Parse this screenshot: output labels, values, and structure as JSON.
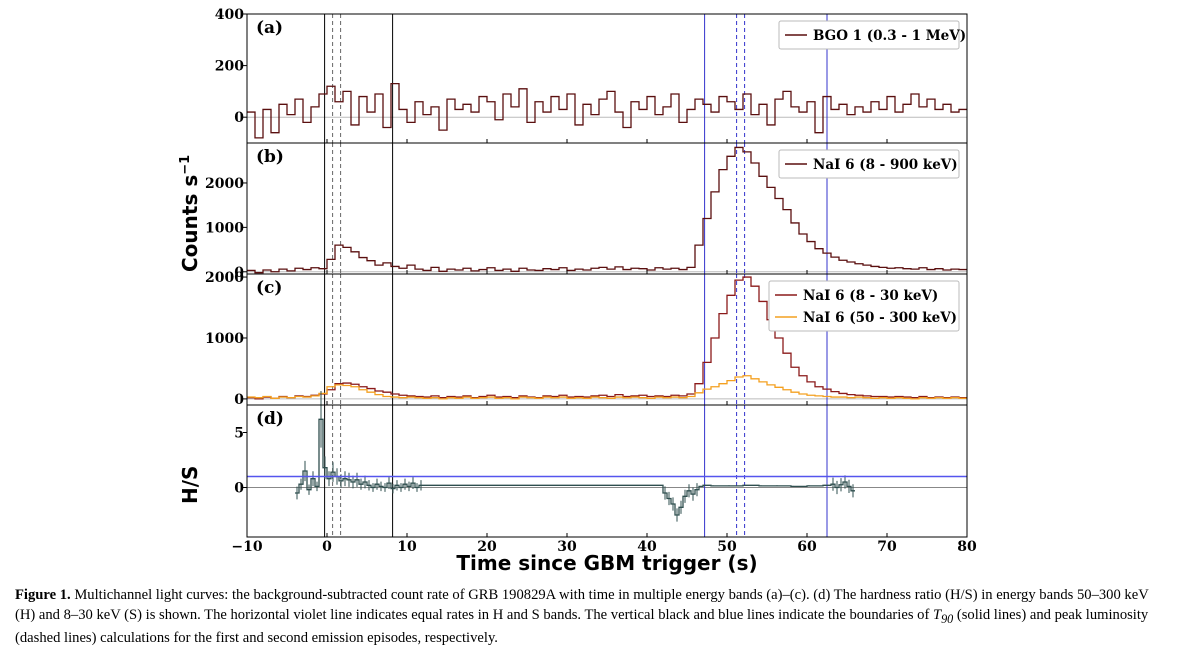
{
  "figure": {
    "x_axis_label": "Time since GBM trigger (s)",
    "y_axis_label_counts": "Counts s",
    "y_axis_label_counts_exp": "−1",
    "y_axis_label_hs": "H/S",
    "x_ticks": [
      -10,
      0,
      10,
      20,
      30,
      40,
      50,
      60,
      70,
      80
    ]
  },
  "caption": {
    "label": "Figure 1.",
    "part1": " Multichannel light curves: the background-subtracted count rate of GRB 190829A with time in multiple energy bands (a)–(c). (d) The hardness ratio (H/S) in energy bands 50–300 keV (H) and 8–30 keV (S) is shown. The horizontal violet line indicates equal rates in H and S bands. The vertical black and blue lines indicate the boundaries of ",
    "t90_symbol": "T",
    "t90_sub": "90",
    "part2": " (solid lines) and peak luminosity (dashed lines) calculations for the first and second emission episodes, respectively."
  },
  "chart_data": [
    {
      "panel": "(a)",
      "type": "line",
      "step": true,
      "xlim": [
        -10,
        80
      ],
      "ylim": [
        -100,
        400
      ],
      "y_ticks": [
        0,
        200,
        400
      ],
      "legend_position": "top-right",
      "series": [
        {
          "name": "BGO 1 (0.3 - 1 MeV)",
          "color": "#5a0f0f",
          "x": [
            -10,
            -9,
            -8,
            -7,
            -6,
            -5,
            -4,
            -3,
            -2,
            -1,
            0,
            1,
            2,
            3,
            4,
            5,
            6,
            7,
            8,
            9,
            10,
            11,
            12,
            13,
            14,
            15,
            16,
            17,
            18,
            19,
            20,
            21,
            22,
            23,
            24,
            25,
            26,
            27,
            28,
            29,
            30,
            31,
            32,
            33,
            34,
            35,
            36,
            37,
            38,
            39,
            40,
            41,
            42,
            43,
            44,
            45,
            46,
            47,
            48,
            49,
            50,
            51,
            52,
            53,
            54,
            55,
            56,
            57,
            58,
            59,
            60,
            61,
            62,
            63,
            64,
            65,
            66,
            67,
            68,
            69,
            70,
            71,
            72,
            73,
            74,
            75,
            76,
            77,
            78,
            79
          ],
          "y": [
            20,
            -80,
            30,
            -60,
            50,
            10,
            70,
            -20,
            40,
            90,
            120,
            60,
            100,
            -30,
            80,
            20,
            90,
            -40,
            130,
            30,
            -20,
            60,
            10,
            40,
            -50,
            70,
            30,
            50,
            20,
            80,
            60,
            -10,
            90,
            40,
            110,
            -20,
            60,
            20,
            80,
            30,
            90,
            -30,
            50,
            10,
            70,
            100,
            20,
            -40,
            60,
            30,
            80,
            10,
            40,
            90,
            -20,
            30,
            70,
            50,
            20,
            80,
            60,
            30,
            90,
            10,
            50,
            -30,
            70,
            100,
            40,
            20,
            60,
            -60,
            80,
            30,
            50,
            10,
            40,
            20,
            60,
            30,
            80,
            20,
            50,
            90,
            40,
            70,
            30,
            50,
            20,
            30
          ]
        }
      ]
    },
    {
      "panel": "(b)",
      "type": "line",
      "step": true,
      "xlim": [
        -10,
        80
      ],
      "ylim": [
        -50,
        2900
      ],
      "y_ticks": [
        0,
        1000,
        2000
      ],
      "legend_position": "top-right",
      "series": [
        {
          "name": "NaI 6 (8 - 900 keV)",
          "color": "#5a0f0f",
          "x": [
            -10,
            -9,
            -8,
            -7,
            -6,
            -5,
            -4,
            -3,
            -2,
            -1,
            0,
            1,
            2,
            3,
            4,
            5,
            6,
            7,
            8,
            9,
            10,
            11,
            12,
            13,
            14,
            15,
            16,
            17,
            18,
            19,
            20,
            21,
            22,
            23,
            24,
            25,
            26,
            27,
            28,
            29,
            30,
            31,
            32,
            33,
            34,
            35,
            36,
            37,
            38,
            39,
            40,
            41,
            42,
            43,
            44,
            45,
            46,
            47,
            48,
            49,
            50,
            51,
            52,
            53,
            54,
            55,
            56,
            57,
            58,
            59,
            60,
            61,
            62,
            63,
            64,
            65,
            66,
            67,
            68,
            69,
            70,
            71,
            72,
            73,
            74,
            75,
            76,
            77,
            78,
            79
          ],
          "y": [
            30,
            -20,
            40,
            0,
            60,
            20,
            80,
            50,
            90,
            70,
            280,
            600,
            550,
            450,
            320,
            250,
            150,
            200,
            120,
            80,
            150,
            60,
            30,
            100,
            10,
            60,
            40,
            80,
            20,
            50,
            90,
            30,
            60,
            10,
            80,
            40,
            30,
            70,
            50,
            90,
            30,
            60,
            40,
            80,
            100,
            60,
            110,
            50,
            80,
            70,
            40,
            90,
            60,
            80,
            50,
            100,
            600,
            1200,
            1800,
            2300,
            2600,
            2800,
            2700,
            2450,
            2150,
            1900,
            1650,
            1400,
            1100,
            850,
            680,
            520,
            420,
            330,
            260,
            220,
            180,
            150,
            120,
            100,
            80,
            90,
            70,
            60,
            90,
            50,
            70,
            40,
            60,
            50
          ]
        }
      ]
    },
    {
      "panel": "(c)",
      "type": "line",
      "step": true,
      "xlim": [
        -10,
        80
      ],
      "ylim": [
        -100,
        2050
      ],
      "y_ticks": [
        0,
        1000,
        2000
      ],
      "legend_position": "top-right",
      "series": [
        {
          "name": "NaI 6 (8 - 30 keV)",
          "color": "#8b1a1a",
          "x": [
            -10,
            -9,
            -8,
            -7,
            -6,
            -5,
            -4,
            -3,
            -2,
            -1,
            0,
            1,
            2,
            3,
            4,
            5,
            6,
            7,
            8,
            9,
            10,
            11,
            12,
            13,
            14,
            15,
            16,
            17,
            18,
            19,
            20,
            21,
            22,
            23,
            24,
            25,
            26,
            27,
            28,
            29,
            30,
            31,
            32,
            33,
            34,
            35,
            36,
            37,
            38,
            39,
            40,
            41,
            42,
            43,
            44,
            45,
            46,
            47,
            48,
            49,
            50,
            51,
            52,
            53,
            54,
            55,
            56,
            57,
            58,
            59,
            60,
            61,
            62,
            63,
            64,
            65,
            66,
            67,
            68,
            69,
            70,
            71,
            72,
            73,
            74,
            75,
            76,
            77,
            78,
            79
          ],
          "y": [
            20,
            0,
            30,
            10,
            40,
            20,
            50,
            40,
            60,
            80,
            150,
            250,
            260,
            240,
            200,
            170,
            130,
            110,
            80,
            60,
            50,
            40,
            30,
            50,
            20,
            40,
            30,
            50,
            20,
            40,
            60,
            30,
            40,
            20,
            50,
            30,
            20,
            50,
            40,
            60,
            30,
            40,
            30,
            50,
            60,
            40,
            70,
            40,
            50,
            60,
            40,
            50,
            40,
            60,
            50,
            80,
            250,
            600,
            1000,
            1400,
            1700,
            1950,
            2000,
            1850,
            1600,
            1300,
            1000,
            750,
            520,
            380,
            280,
            200,
            160,
            120,
            90,
            70,
            60,
            50,
            40,
            40,
            30,
            40,
            30,
            20,
            40,
            20,
            30,
            20,
            30,
            20
          ]
        },
        {
          "name": "NaI 6 (50 - 300 keV)",
          "color": "#f4a020",
          "x": [
            -10,
            -9,
            -8,
            -7,
            -6,
            -5,
            -4,
            -3,
            -2,
            -1,
            0,
            1,
            2,
            3,
            4,
            5,
            6,
            7,
            8,
            9,
            10,
            11,
            12,
            13,
            14,
            15,
            16,
            17,
            18,
            19,
            20,
            21,
            22,
            23,
            24,
            25,
            26,
            27,
            28,
            29,
            30,
            31,
            32,
            33,
            34,
            35,
            36,
            37,
            38,
            39,
            40,
            41,
            42,
            43,
            44,
            45,
            46,
            47,
            48,
            49,
            50,
            51,
            52,
            53,
            54,
            55,
            56,
            57,
            58,
            59,
            60,
            61,
            62,
            63,
            64,
            65,
            66,
            67,
            68,
            69,
            70,
            71,
            72,
            73,
            74,
            75,
            76,
            77,
            78,
            79
          ],
          "y": [
            30,
            20,
            40,
            10,
            30,
            20,
            40,
            30,
            50,
            90,
            200,
            230,
            220,
            200,
            150,
            110,
            70,
            40,
            30,
            20,
            30,
            20,
            10,
            20,
            0,
            20,
            10,
            30,
            10,
            20,
            30,
            10,
            20,
            0,
            30,
            20,
            10,
            30,
            20,
            30,
            10,
            20,
            10,
            30,
            20,
            10,
            30,
            20,
            30,
            20,
            10,
            30,
            20,
            30,
            20,
            40,
            100,
            160,
            200,
            250,
            300,
            360,
            380,
            330,
            280,
            230,
            190,
            150,
            110,
            80,
            60,
            50,
            40,
            30,
            30,
            20,
            30,
            20,
            10,
            20,
            10,
            20,
            10,
            0,
            20,
            10,
            20,
            10,
            20,
            10
          ]
        }
      ]
    },
    {
      "panel": "(d)",
      "type": "line",
      "step": true,
      "xlim": [
        -10,
        80
      ],
      "ylim": [
        -4.5,
        7.5
      ],
      "y_ticks": [
        0,
        5
      ],
      "reference_line_y": 1.0,
      "series": [
        {
          "name": "H/S",
          "color": "#2f4f4f",
          "x": [
            -4,
            -3.5,
            -3,
            -2.5,
            -2,
            -1.5,
            -1,
            -0.5,
            0,
            0.5,
            1,
            1.5,
            2,
            2.5,
            3,
            3.5,
            4,
            4.5,
            5,
            5.5,
            6,
            6.5,
            7,
            7.5,
            8,
            8.5,
            9,
            9.5,
            10,
            10.5,
            11,
            11.5,
            42,
            42.5,
            43,
            43.5,
            44,
            44.5,
            45,
            45.5,
            46,
            46.5,
            47,
            48,
            50,
            52,
            54,
            56,
            58,
            60,
            62,
            63,
            63.5,
            64,
            64.5,
            65,
            65.5
          ],
          "y": [
            -0.5,
            0.3,
            1.5,
            -0.2,
            0.8,
            0.1,
            6.2,
            1.8,
            0.8,
            1.4,
            1.0,
            0.6,
            0.8,
            0.7,
            0.5,
            0.7,
            0.3,
            0.5,
            0.2,
            0.0,
            0.3,
            0.1,
            0.0,
            0.4,
            -0.1,
            0.2,
            0.0,
            0.3,
            0.1,
            0.4,
            0.0,
            0.2,
            -0.5,
            -1.0,
            -1.5,
            -2.5,
            -1.8,
            -0.8,
            -0.3,
            -0.6,
            -0.2,
            0.1,
            0.2,
            0.15,
            0.15,
            0.2,
            0.15,
            0.15,
            0.1,
            0.15,
            0.2,
            0.3,
            0.0,
            0.25,
            0.5,
            0.1,
            -0.3
          ]
        }
      ]
    }
  ],
  "markers": {
    "first_episode_t90": [
      -0.3,
      8.2
    ],
    "first_episode_peak": [
      0.7,
      1.7
    ],
    "second_episode_t90": [
      47.2,
      62.5
    ],
    "second_episode_peak": [
      51.2,
      52.2
    ]
  }
}
